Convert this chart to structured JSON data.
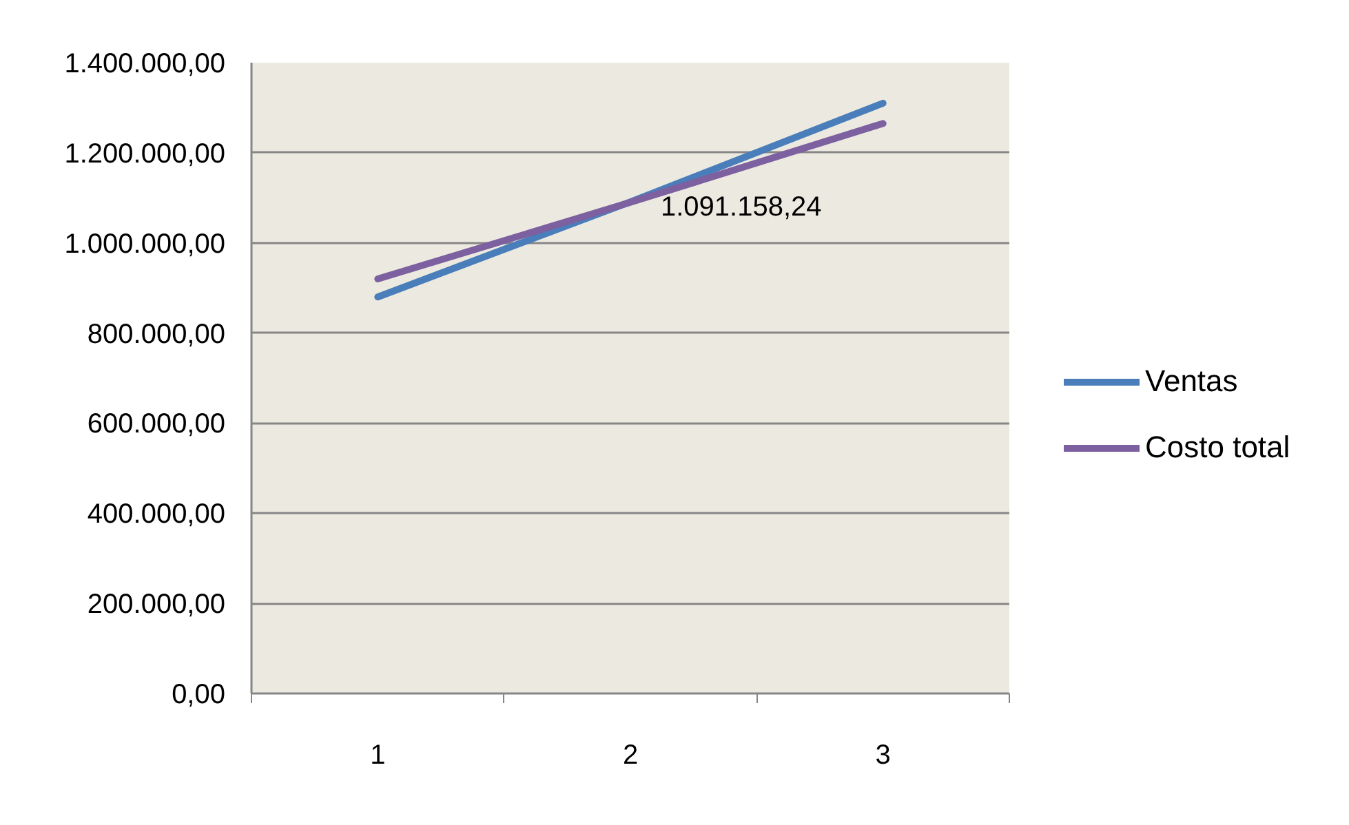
{
  "chart_data": {
    "type": "line",
    "categories": [
      "1",
      "2",
      "3"
    ],
    "series": [
      {
        "name": "Ventas",
        "color": "#4a7ebb",
        "values": [
          880000,
          1091158.24,
          1310000
        ],
        "value_labels": [
          null,
          "1.091.158,24",
          null
        ]
      },
      {
        "name": "Costo total",
        "color": "#7d60a0",
        "values": [
          920000,
          1090000,
          1265000
        ]
      }
    ],
    "ylim": [
      0,
      1400000
    ],
    "yticks": [
      {
        "value": 0,
        "label": "0,00"
      },
      {
        "value": 200000,
        "label": "200.000,00"
      },
      {
        "value": 400000,
        "label": "400.000,00"
      },
      {
        "value": 600000,
        "label": "600.000,00"
      },
      {
        "value": 800000,
        "label": "800.000,00"
      },
      {
        "value": 1000000,
        "label": "1.000.000,00"
      },
      {
        "value": 1200000,
        "label": "1.200.000,00"
      },
      {
        "value": 1400000,
        "label": "1.400.000,00"
      }
    ],
    "grid": "y",
    "legend": "right"
  }
}
